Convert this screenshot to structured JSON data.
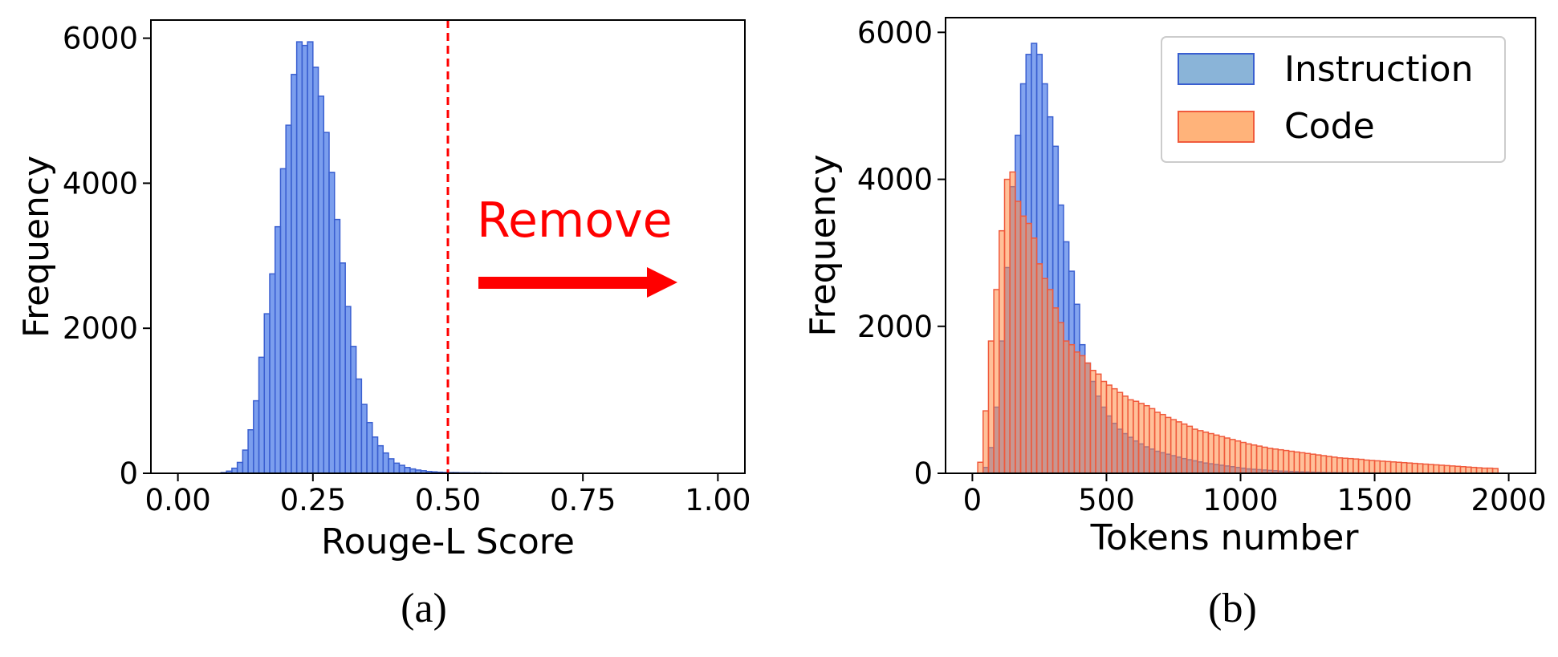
{
  "chart_data": [
    {
      "type": "bar",
      "caption": "(a)",
      "xlabel": "Rouge-L Score",
      "ylabel": "Frequency",
      "xlim": [
        -0.05,
        1.05
      ],
      "ylim": [
        0,
        6250
      ],
      "xticks": [
        0.0,
        0.25,
        0.5,
        0.75,
        1.0
      ],
      "xtick_labels": [
        "0.00",
        "0.25",
        "0.50",
        "0.75",
        "1.00"
      ],
      "yticks": [
        0,
        2000,
        4000,
        6000
      ],
      "ytick_labels": [
        "0",
        "2000",
        "4000",
        "6000"
      ],
      "bin_width": 0.01,
      "bin_start": 0.08,
      "series": [
        {
          "color": "#4f7ee8",
          "edge_color": "#3a5fd0",
          "values": [
            10,
            30,
            70,
            150,
            320,
            600,
            1000,
            1600,
            2200,
            2750,
            3400,
            4200,
            4800,
            5500,
            5950,
            5900,
            5950,
            5600,
            5200,
            4700,
            4150,
            3500,
            2900,
            2300,
            1750,
            1300,
            950,
            700,
            500,
            380,
            280,
            200,
            140,
            110,
            80,
            60,
            45,
            35,
            25,
            20,
            15,
            12,
            10,
            10,
            8,
            8,
            6,
            6,
            5,
            5,
            4,
            4,
            3,
            3,
            3,
            2,
            2,
            2,
            2,
            1
          ]
        }
      ],
      "threshold": 0.5,
      "threshold_color": "#ff0000",
      "annotation": {
        "text": "Remove",
        "color": "#ff0000"
      },
      "grid": false
    },
    {
      "type": "bar",
      "caption": "(b)",
      "xlabel": "Tokens number",
      "ylabel": "Frequency",
      "xlim": [
        -100,
        2100
      ],
      "ylim": [
        0,
        6200
      ],
      "xticks": [
        0,
        500,
        1000,
        1500,
        2000
      ],
      "xtick_labels": [
        "0",
        "500",
        "1000",
        "1500",
        "2000"
      ],
      "yticks": [
        0,
        2000,
        4000,
        6000
      ],
      "ytick_labels": [
        "0",
        "2000",
        "4000",
        "6000"
      ],
      "bin_width": 20,
      "legend_position": "top-right",
      "series": [
        {
          "name": "Instruction",
          "color": "#4f7ee8",
          "edge_color": "#3a5fd0",
          "legend_color": "#8ab4d8",
          "bin_start": 40,
          "values": [
            80,
            350,
            900,
            1800,
            2800,
            3900,
            4600,
            5300,
            5700,
            5850,
            5700,
            5300,
            4850,
            4450,
            3650,
            3150,
            2750,
            2300,
            1750,
            1500,
            1250,
            1050,
            900,
            780,
            680,
            600,
            540,
            490,
            440,
            400,
            360,
            330,
            300,
            280,
            260,
            240,
            220,
            200,
            185,
            170,
            155,
            140,
            130,
            120,
            110,
            100,
            90,
            80,
            70,
            60,
            55,
            50,
            45,
            40,
            35,
            30,
            28,
            25,
            22,
            20,
            18,
            16,
            14,
            12,
            10,
            10,
            8,
            8,
            6,
            6,
            5,
            5,
            4,
            4,
            3,
            3,
            3,
            2,
            2,
            2,
            2,
            2,
            1,
            1,
            1,
            1,
            1,
            1,
            1,
            1,
            1,
            1,
            1,
            1,
            1,
            1,
            1,
            1
          ]
        },
        {
          "name": "Code",
          "color": "#ff8c45",
          "edge_color": "#f05a3c",
          "legend_color": "#ffb37a",
          "bin_start": 20,
          "values": [
            150,
            850,
            1800,
            2500,
            3300,
            4000,
            4100,
            3700,
            3500,
            3400,
            3200,
            2850,
            2650,
            2500,
            2250,
            2050,
            1800,
            1750,
            1650,
            1600,
            1500,
            1400,
            1350,
            1250,
            1200,
            1150,
            1100,
            1050,
            1000,
            980,
            950,
            920,
            880,
            830,
            800,
            760,
            730,
            700,
            670,
            640,
            600,
            580,
            560,
            540,
            520,
            500,
            480,
            460,
            440,
            420,
            400,
            385,
            370,
            355,
            340,
            330,
            320,
            310,
            300,
            290,
            280,
            270,
            260,
            250,
            240,
            230,
            220,
            210,
            205,
            200,
            195,
            190,
            180,
            175,
            170,
            165,
            160,
            155,
            150,
            145,
            140,
            135,
            130,
            125,
            120,
            115,
            110,
            105,
            100,
            95,
            90,
            85,
            80,
            75,
            70,
            70,
            65
          ]
        }
      ],
      "grid": false
    }
  ]
}
